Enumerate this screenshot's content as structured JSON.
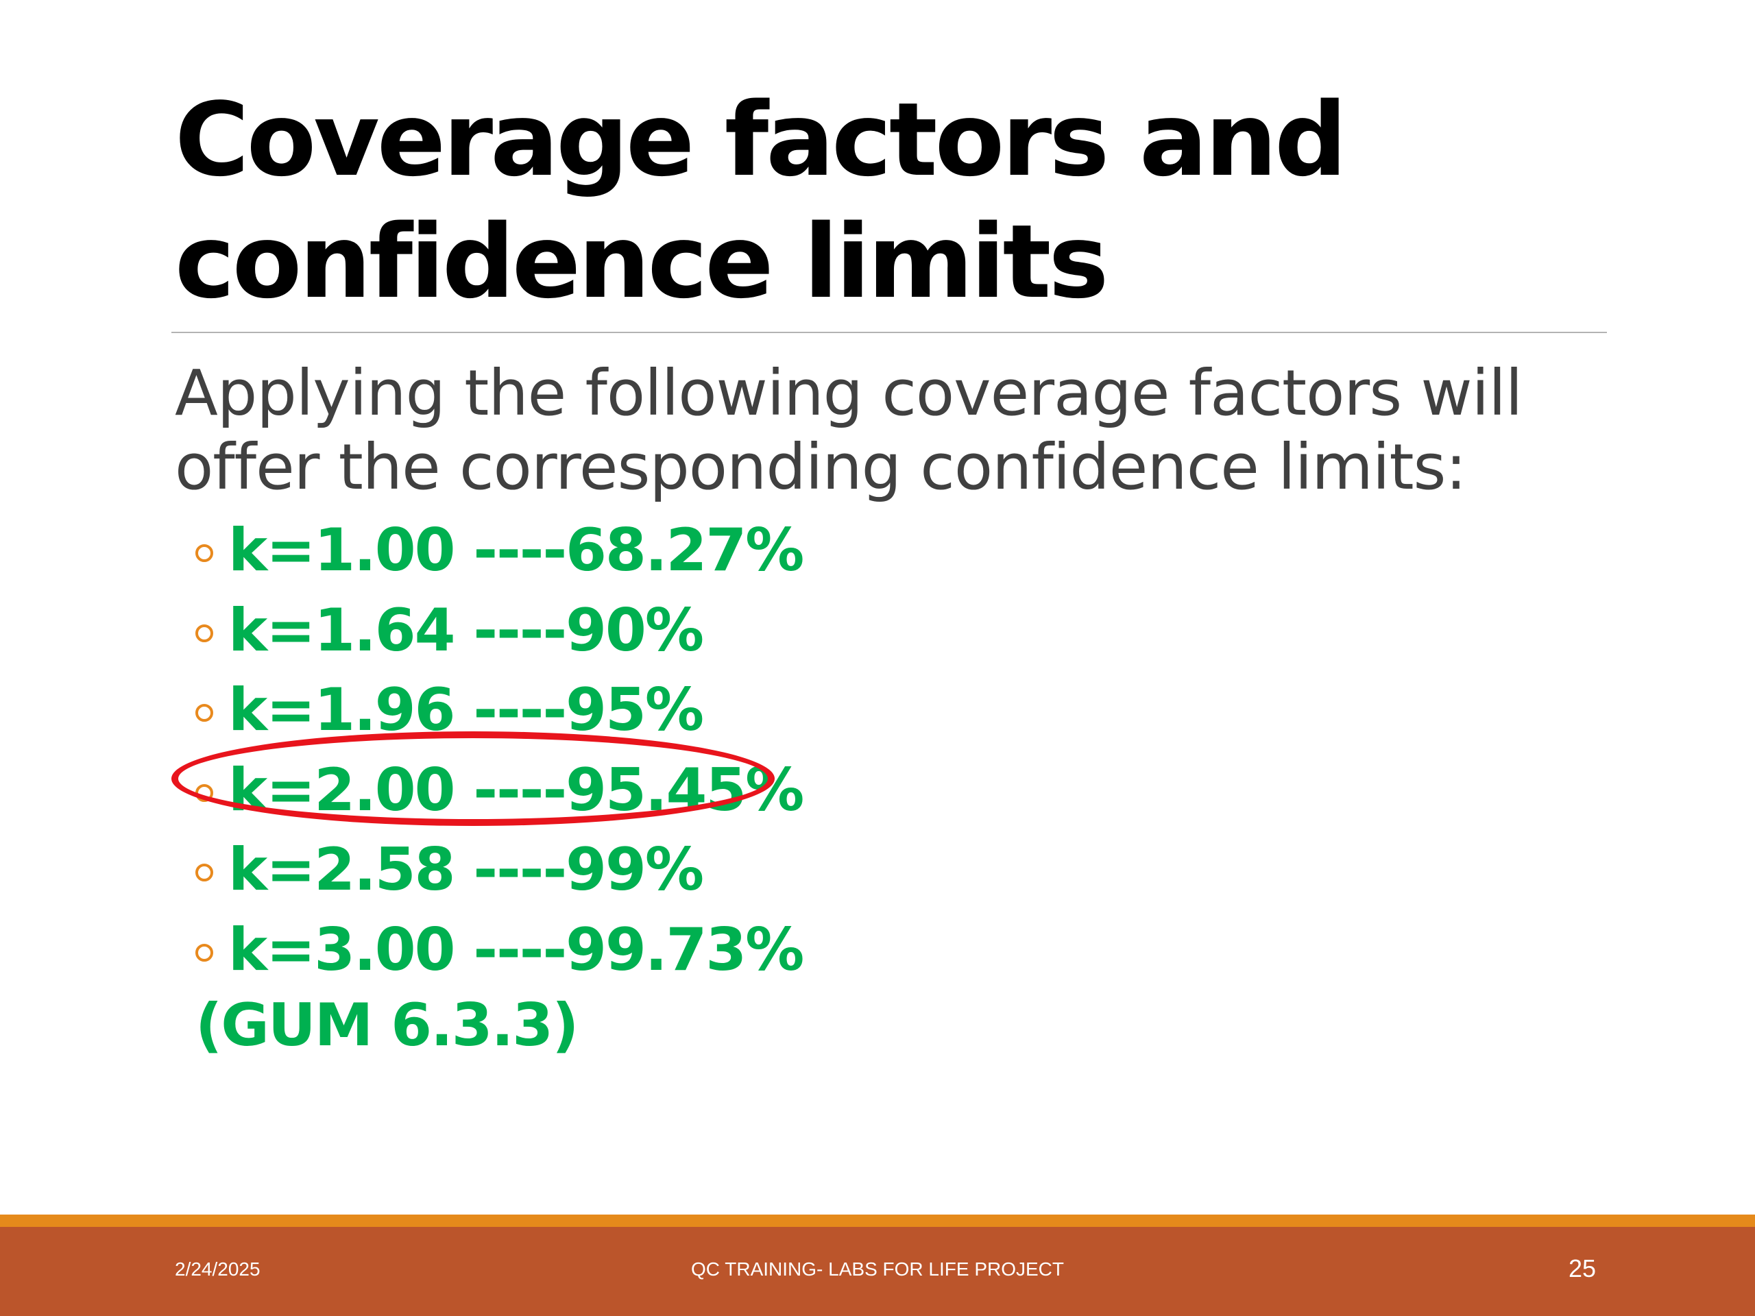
{
  "slide": {
    "title": "Coverage factors and confidence limits",
    "intro": "Applying the following coverage factors will offer the corresponding confidence limits:",
    "items": [
      "k=1.00 ----68.27%",
      "k=1.64 ----90%",
      "k=1.96 ----95%",
      "k=2.00 ----95.45%",
      "k=2.58 ----99%",
      "k=3.00 ----99.73%"
    ],
    "note": "(GUM 6.3.3)",
    "highlighted_item_index": 3
  },
  "footer": {
    "date": "2/24/2025",
    "center_text": "QC TRAINING- LABS FOR LIFE PROJECT",
    "page_number": "25"
  },
  "colors": {
    "title": "#000000",
    "intro": "#404040",
    "items": "#00b050",
    "bullet": "#e8891d",
    "highlight": "#e8141c",
    "footer_stripe": "#e58a1b",
    "footer_bar": "#bb552b"
  }
}
